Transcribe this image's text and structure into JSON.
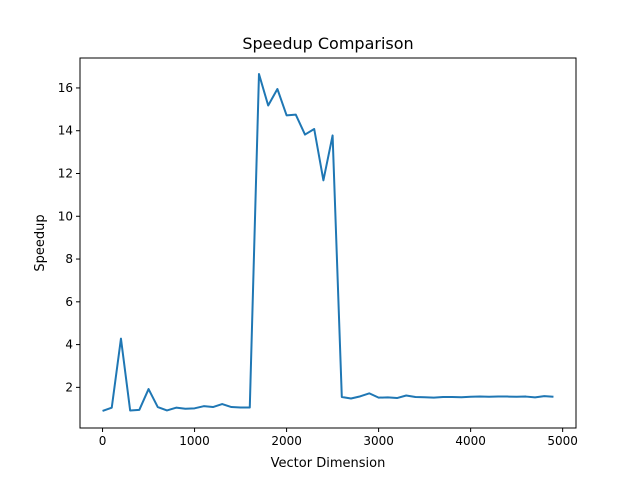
{
  "chart_data": {
    "type": "line",
    "title": "Speedup Comparison",
    "xlabel": "Vector Dimension",
    "ylabel": "Speedup",
    "xlim": [
      -245,
      5145
    ],
    "ylim": [
      0.1,
      17.4
    ],
    "xticks": [
      0,
      1000,
      2000,
      3000,
      4000,
      5000
    ],
    "yticks": [
      2,
      4,
      6,
      8,
      10,
      12,
      14,
      16
    ],
    "grid": false,
    "color": "#1f77b4",
    "series": [
      {
        "x": [
          0,
          100,
          200,
          300,
          400,
          500,
          600,
          700,
          800,
          900,
          1000,
          1100,
          1200,
          1300,
          1400,
          1500,
          1600,
          1700,
          1800,
          1900,
          2000,
          2100,
          2200,
          2300,
          2400,
          2500,
          2600,
          2700,
          2800,
          2900,
          3000,
          3100,
          3200,
          3300,
          3400,
          3500,
          3600,
          3700,
          3800,
          3900,
          4000,
          4100,
          4200,
          4300,
          4400,
          4500,
          4600,
          4700,
          4800,
          4900
        ],
        "values": [
          0.9,
          1.05,
          4.28,
          0.92,
          0.95,
          1.92,
          1.08,
          0.92,
          1.05,
          1.0,
          1.02,
          1.12,
          1.08,
          1.22,
          1.08,
          1.06,
          1.06,
          16.65,
          15.18,
          15.95,
          14.72,
          14.75,
          13.82,
          14.08,
          11.68,
          13.78,
          1.55,
          1.48,
          1.58,
          1.72,
          1.52,
          1.53,
          1.5,
          1.62,
          1.55,
          1.54,
          1.52,
          1.55,
          1.55,
          1.54,
          1.56,
          1.57,
          1.56,
          1.57,
          1.57,
          1.56,
          1.57,
          1.53,
          1.59,
          1.56
        ]
      }
    ]
  }
}
